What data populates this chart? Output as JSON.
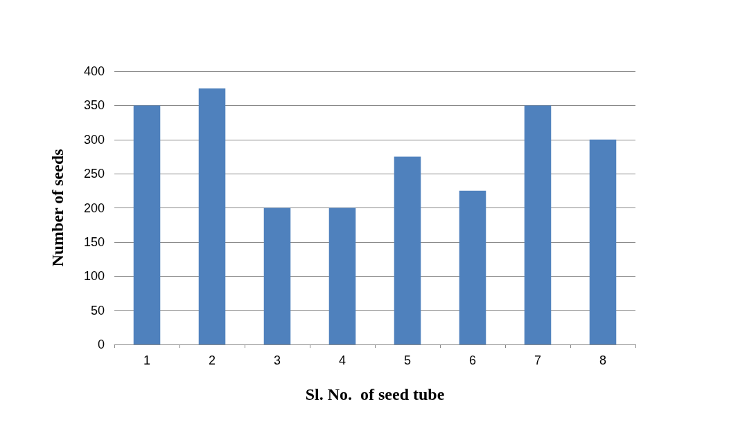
{
  "chart_data": {
    "type": "bar",
    "xlabel": "Sl. No.  of seed tube",
    "ylabel": "Number of seeds",
    "categories": [
      "1",
      "2",
      "3",
      "4",
      "5",
      "6",
      "7",
      "8"
    ],
    "values": [
      350,
      375,
      200,
      200,
      275,
      225,
      350,
      300
    ],
    "color": "#4f81bd",
    "ylim": [
      0,
      400
    ],
    "yticks": [
      0,
      50,
      100,
      150,
      200,
      250,
      300,
      350,
      400
    ],
    "grid": "y"
  }
}
